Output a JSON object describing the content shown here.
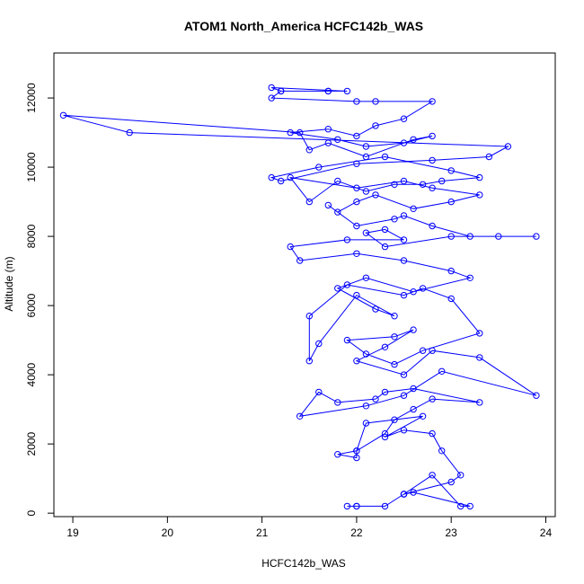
{
  "chart_data": {
    "type": "line",
    "title": "ATOM1 North_America HCFC142b_WAS",
    "xlabel": "HCFC142b_WAS",
    "ylabel": "Altitude (m)",
    "xlim": [
      18.8,
      24.1
    ],
    "ylim": [
      -100,
      13300
    ],
    "x_ticks": [
      19,
      20,
      21,
      22,
      23,
      24
    ],
    "y_ticks": [
      0,
      2000,
      4000,
      6000,
      8000,
      10000,
      12000
    ],
    "x_tick_labels": [
      "19",
      "20",
      "21",
      "22",
      "23",
      "24"
    ],
    "y_tick_labels": [
      "0",
      "2000",
      "4000",
      "6000",
      "8000",
      "10000",
      "12000"
    ],
    "grid": false,
    "marker": "open-circle",
    "color": "#0000ff",
    "series": [
      {
        "x": [
          21.9,
          22.0,
          22.0,
          22.3,
          22.5,
          22.8,
          23.1,
          23.2,
          22.6,
          22.5,
          22.5,
          23.0,
          23.1,
          22.9,
          22.8,
          22.5,
          22.3,
          22.7,
          22.1,
          22.0,
          22.0,
          21.8,
          22.0,
          22.3,
          22.4,
          22.6,
          22.8,
          23.3,
          22.6,
          22.3,
          22.2,
          21.8,
          21.6,
          21.4,
          22.1,
          22.5,
          22.9,
          23.9,
          23.3,
          22.8,
          22.5,
          22.0,
          22.3,
          22.6,
          22.4,
          21.9,
          22.1,
          22.4,
          22.7,
          23.3,
          23.0,
          22.7,
          22.5,
          21.9,
          21.5,
          21.5,
          21.6,
          22.0,
          22.4,
          22.2,
          21.8,
          22.1,
          22.6,
          23.2,
          23.0,
          22.5,
          22.0,
          21.4,
          21.3,
          21.9,
          22.5,
          22.3,
          22.1,
          22.3,
          23.0,
          23.5,
          23.9,
          23.2,
          22.8,
          22.5,
          22.4,
          22.0,
          21.7,
          21.8,
          22.0,
          22.2,
          22.6,
          23.0,
          23.3,
          22.8,
          22.5,
          22.0,
          21.3,
          21.5,
          21.8,
          22.1,
          22.4,
          22.7,
          22.9,
          23.3,
          23.0,
          22.3,
          21.6,
          21.1,
          21.2,
          22.0,
          22.8,
          23.4,
          23.6,
          19.6,
          18.9,
          21.4,
          21.5,
          21.7,
          22.1,
          22.6,
          22.8,
          22.5,
          22.1,
          21.8,
          21.3,
          21.7,
          22.0,
          22.2,
          22.5,
          22.8,
          22.2,
          22.0,
          21.1,
          21.2,
          21.7,
          21.9,
          21.1,
          21.2,
          21.7
        ],
        "y": [
          200,
          200,
          200,
          200,
          550,
          1100,
          200,
          200,
          600,
          550,
          550,
          900,
          1100,
          1800,
          2300,
          2400,
          2200,
          2800,
          2600,
          1800,
          1600,
          1700,
          1800,
          2300,
          2700,
          3000,
          3300,
          3200,
          3600,
          3500,
          3300,
          3200,
          3500,
          2800,
          3100,
          3400,
          4100,
          3400,
          4500,
          4700,
          4000,
          4400,
          4800,
          5300,
          5100,
          5000,
          4600,
          4300,
          4700,
          5200,
          6200,
          6500,
          6300,
          6600,
          5700,
          4400,
          4900,
          6300,
          5700,
          5900,
          6500,
          6800,
          6400,
          6800,
          7000,
          7300,
          7500,
          7300,
          7700,
          7900,
          7900,
          8200,
          8100,
          7700,
          8000,
          8000,
          8000,
          8000,
          8300,
          8600,
          8500,
          8300,
          8900,
          8700,
          9000,
          9200,
          8800,
          9000,
          9200,
          9400,
          9600,
          9400,
          9700,
          9000,
          9600,
          9300,
          9500,
          9500,
          9600,
          9700,
          9900,
          10300,
          10000,
          9700,
          9600,
          10100,
          10200,
          10300,
          10600,
          11000,
          11500,
          11000,
          10500,
          10700,
          10300,
          10800,
          10900,
          10700,
          10600,
          10800,
          11000,
          11100,
          10900,
          11200,
          11400,
          11900,
          11900,
          11900,
          12000,
          12200,
          12200,
          12200,
          12300,
          12200,
          12200
        ]
      }
    ]
  }
}
